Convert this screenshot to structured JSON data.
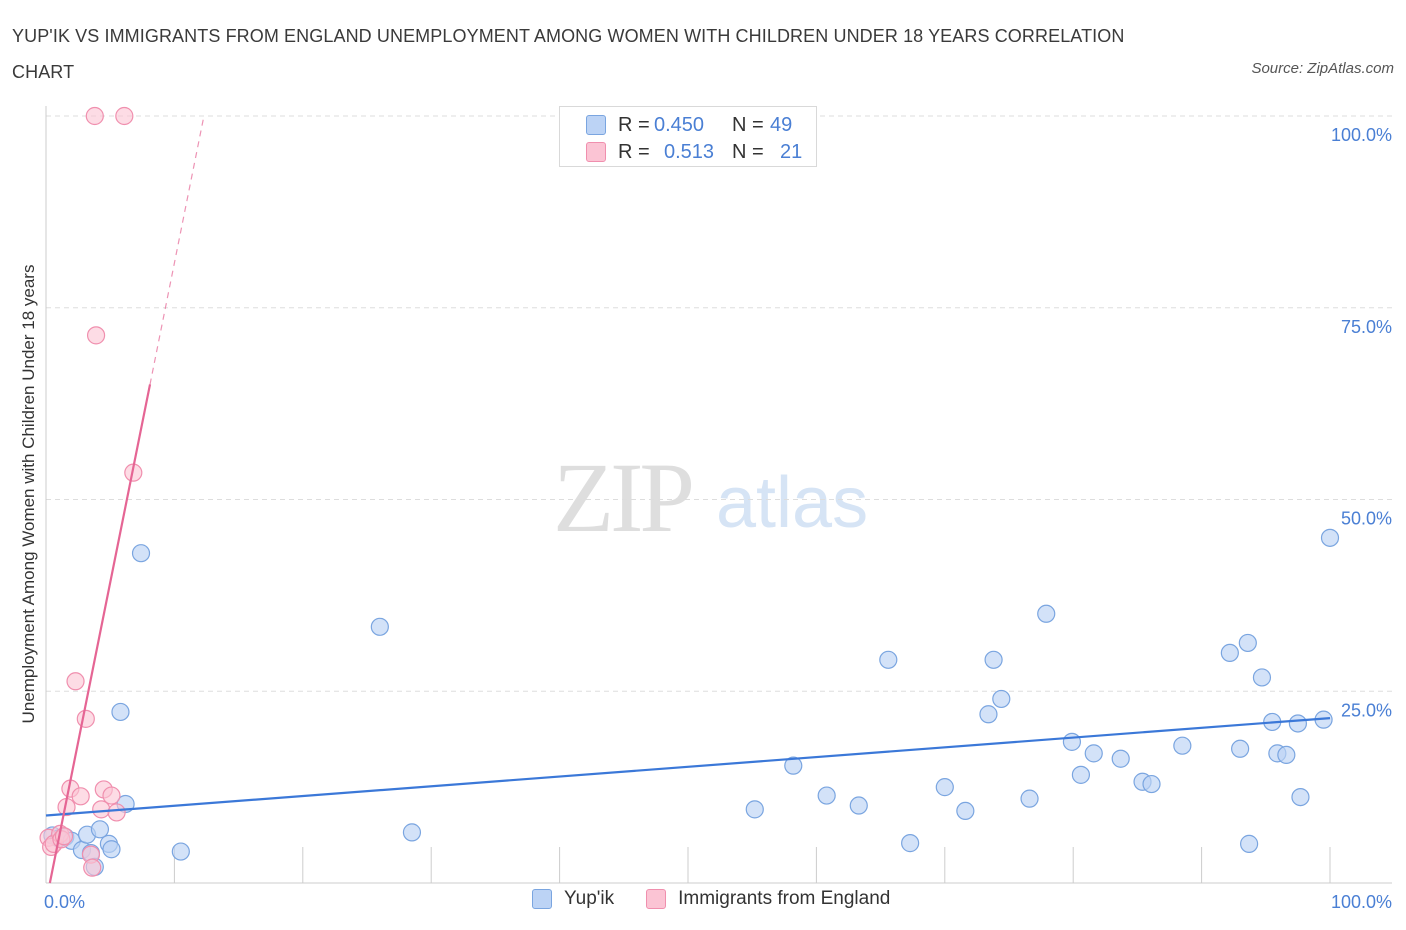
{
  "title": "YUP'IK VS IMMIGRANTS FROM ENGLAND UNEMPLOYMENT AMONG WOMEN WITH CHILDREN UNDER 18 YEARS CORRELATION CHART",
  "source": "Source: ZipAtlas.com",
  "watermark": {
    "zip": "ZIP",
    "atlas": "atlas"
  },
  "legend": {
    "rows": [
      {
        "r_label": "R =",
        "r_value": "0.450",
        "n_label": "N =",
        "n_value": "49"
      },
      {
        "r_label": "R =",
        "r_value": "0.513",
        "n_label": "N =",
        "n_value": "21"
      }
    ]
  },
  "bottom_legend": [
    "Yup'ik",
    "Immigrants from England"
  ],
  "colors": {
    "blue_fill": "#bcd3f5",
    "blue_stroke": "#7aa5e0",
    "blue_line": "#3b78d8",
    "pink_fill": "#fbc4d4",
    "pink_stroke": "#f08fae",
    "pink_line": "#e56594",
    "axis_text": "#4a7fd4",
    "grid": "#dddddd"
  },
  "chart_data": {
    "type": "scatter",
    "title": "YUP'IK VS IMMIGRANTS FROM ENGLAND UNEMPLOYMENT AMONG WOMEN WITH CHILDREN UNDER 18 YEARS CORRELATION CHART",
    "xlabel": "",
    "ylabel": "Unemployment Among Women with Children Under 18 years",
    "xlim": [
      0,
      100
    ],
    "ylim": [
      0,
      100
    ],
    "x_tick_labels": [
      "0.0%",
      "100.0%"
    ],
    "y_tick_labels": [
      {
        "value": 25,
        "label": "25.0%"
      },
      {
        "value": 50,
        "label": "50.0%"
      },
      {
        "value": 75,
        "label": "75.0%"
      },
      {
        "value": 100,
        "label": "100.0%"
      }
    ],
    "grid": true,
    "series": [
      {
        "name": "Yup'ik",
        "R": 0.45,
        "N": 49,
        "trend": {
          "x0": 0,
          "y0": 8.8,
          "x1": 100,
          "y1": 21.5,
          "dashed_from": null
        },
        "points": [
          [
            0.5,
            6.2
          ],
          [
            1.0,
            5.8
          ],
          [
            1.5,
            6.0
          ],
          [
            2.0,
            5.5
          ],
          [
            2.8,
            4.3
          ],
          [
            3.2,
            6.3
          ],
          [
            3.5,
            3.9
          ],
          [
            3.8,
            2.1
          ],
          [
            4.2,
            7.0
          ],
          [
            4.9,
            5.1
          ],
          [
            5.1,
            4.4
          ],
          [
            5.8,
            22.3
          ],
          [
            6.2,
            10.3
          ],
          [
            7.4,
            43.0
          ],
          [
            10.5,
            4.1
          ],
          [
            26.0,
            33.4
          ],
          [
            28.5,
            6.6
          ],
          [
            58.2,
            15.3
          ],
          [
            55.2,
            9.6
          ],
          [
            60.8,
            11.4
          ],
          [
            63.3,
            10.1
          ],
          [
            65.6,
            29.1
          ],
          [
            67.3,
            5.2
          ],
          [
            70.0,
            12.5
          ],
          [
            71.6,
            9.4
          ],
          [
            73.4,
            22.0
          ],
          [
            73.8,
            29.1
          ],
          [
            74.4,
            24.0
          ],
          [
            76.6,
            11.0
          ],
          [
            77.9,
            35.1
          ],
          [
            79.9,
            18.4
          ],
          [
            80.6,
            14.1
          ],
          [
            81.6,
            16.9
          ],
          [
            83.7,
            16.2
          ],
          [
            85.4,
            13.2
          ],
          [
            86.1,
            12.9
          ],
          [
            88.5,
            17.9
          ],
          [
            92.2,
            30.0
          ],
          [
            93.0,
            17.5
          ],
          [
            93.6,
            31.3
          ],
          [
            93.7,
            5.1
          ],
          [
            94.7,
            26.8
          ],
          [
            95.5,
            21.0
          ],
          [
            95.9,
            16.9
          ],
          [
            96.6,
            16.7
          ],
          [
            97.5,
            20.8
          ],
          [
            97.7,
            11.2
          ],
          [
            99.5,
            21.3
          ],
          [
            100.0,
            45.0
          ]
        ]
      },
      {
        "name": "Immigrants from England",
        "R": 0.513,
        "N": 21,
        "trend": {
          "x0": 0.3,
          "y0": 0.0,
          "x1": 12.3,
          "y1": 100.0,
          "solid_until_x": 8.1
        },
        "points": [
          [
            0.2,
            5.9
          ],
          [
            0.4,
            4.7
          ],
          [
            0.6,
            5.1
          ],
          [
            1.1,
            6.4
          ],
          [
            1.2,
            5.7
          ],
          [
            1.4,
            6.1
          ],
          [
            1.6,
            9.9
          ],
          [
            1.9,
            12.3
          ],
          [
            2.3,
            26.3
          ],
          [
            2.7,
            11.3
          ],
          [
            3.1,
            21.4
          ],
          [
            3.5,
            3.7
          ],
          [
            3.6,
            2.0
          ],
          [
            3.9,
            71.4
          ],
          [
            4.3,
            9.6
          ],
          [
            4.5,
            12.2
          ],
          [
            5.1,
            11.4
          ],
          [
            5.5,
            9.2
          ],
          [
            3.8,
            100.0
          ],
          [
            6.1,
            100.0
          ],
          [
            6.8,
            53.5
          ]
        ]
      }
    ]
  }
}
